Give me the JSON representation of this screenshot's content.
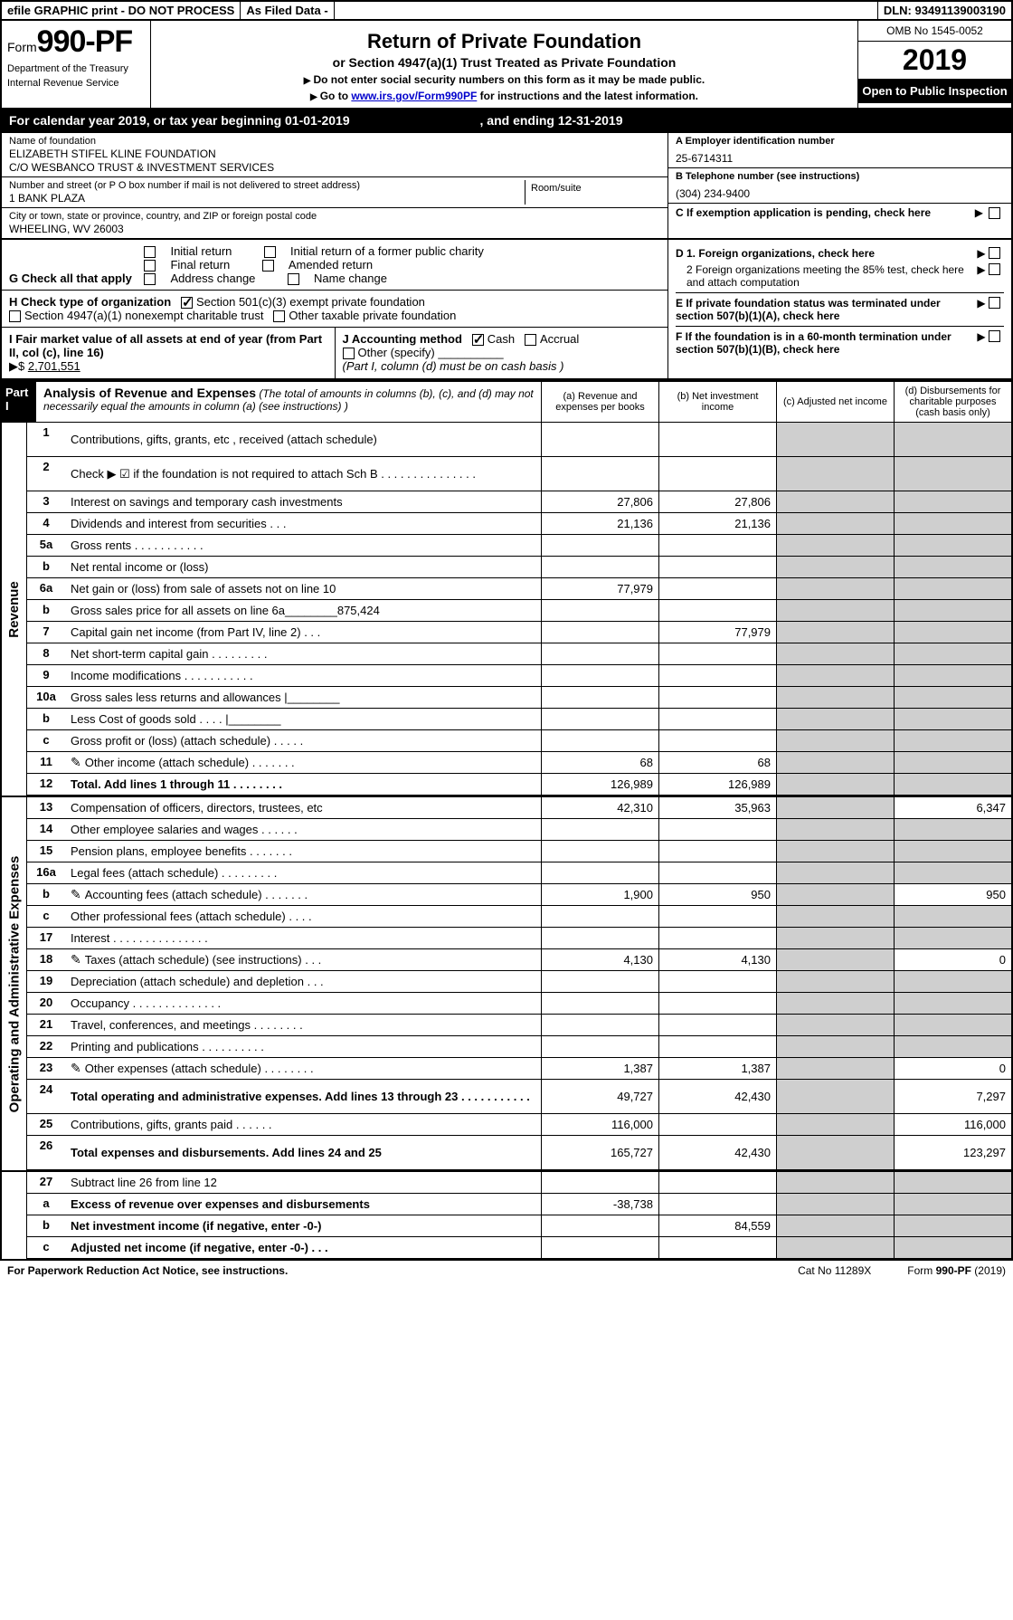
{
  "top": {
    "efile": "efile GRAPHIC print - DO NOT PROCESS",
    "asfiled": "As Filed Data -",
    "dln_label": "DLN:",
    "dln": "93491139003190"
  },
  "hdr": {
    "form_word": "Form",
    "form_no": "990-PF",
    "dept1": "Department of the Treasury",
    "dept2": "Internal Revenue Service",
    "title": "Return of Private Foundation",
    "subtitle": "or Section 4947(a)(1) Trust Treated as Private Foundation",
    "note1": "Do not enter social security numbers on this form as it may be made public.",
    "note2_pre": "Go to ",
    "note2_link": "www.irs.gov/Form990PF",
    "note2_post": " for instructions and the latest information.",
    "omb": "OMB No 1545-0052",
    "year": "2019",
    "open": "Open to Public Inspection"
  },
  "cal": {
    "text_a": "For calendar year 2019, or tax year beginning ",
    "begin": "01-01-2019",
    "text_b": ", and ending ",
    "end": "12-31-2019"
  },
  "entity": {
    "name_lbl": "Name of foundation",
    "name1": "ELIZABETH STIFEL KLINE FOUNDATION",
    "name2": "C/O WESBANCO TRUST & INVESTMENT SERVICES",
    "addr_lbl": "Number and street (or P O  box number if mail is not delivered to street address)",
    "addr": "1 BANK PLAZA",
    "room_lbl": "Room/suite",
    "city_lbl": "City or town, state or province, country, and ZIP or foreign postal code",
    "city": "WHEELING, WV  26003",
    "a_lbl": "A Employer identification number",
    "a_val": "25-6714311",
    "b_lbl": "B Telephone number (see instructions)",
    "b_val": "(304) 234-9400",
    "c_lbl": "C If exemption application is pending, check here"
  },
  "g": {
    "lbl": "G Check all that apply",
    "o1": "Initial return",
    "o2": "Initial return of a former public charity",
    "o3": "Final return",
    "o4": "Amended return",
    "o5": "Address change",
    "o6": "Name change"
  },
  "h": {
    "lbl": "H Check type of organization",
    "o1": "Section 501(c)(3) exempt private foundation",
    "o2": "Section 4947(a)(1) nonexempt charitable trust",
    "o3": "Other taxable private foundation"
  },
  "d": {
    "d1": "D 1. Foreign organizations, check here",
    "d2": "2  Foreign organizations meeting the 85% test, check here and attach computation",
    "e": "E  If private foundation status was terminated under section 507(b)(1)(A), check here",
    "f": "F  If the foundation is in a 60-month termination under section 507(b)(1)(B), check here"
  },
  "i": {
    "lbl": "I Fair market value of all assets at end of year (from Part II, col  (c), line 16) ",
    "amt_lbl": "▶$  ",
    "amt": "2,701,551"
  },
  "j": {
    "lbl": "J Accounting method",
    "o1": "Cash",
    "o2": "Accrual",
    "o3": "Other (specify)",
    "note": "(Part I, column (d) must be on cash basis )"
  },
  "p1": {
    "tag": "Part I",
    "title": "Analysis of Revenue and Expenses",
    "title_note": " (The total of amounts in columns (b), (c), and (d) may not necessarily equal the amounts in column (a) (see instructions) )",
    "col_a": "(a)   Revenue and expenses per books",
    "col_b": "(b)  Net investment income",
    "col_c": "(c)  Adjusted net income",
    "col_d": "(d)  Disbursements for charitable purposes (cash basis only)"
  },
  "vlabels": {
    "rev": "Revenue",
    "exp": "Operating and Administrative Expenses"
  },
  "rows": [
    {
      "n": "1",
      "d": "Contributions, gifts, grants, etc , received (attach schedule)",
      "tall": true
    },
    {
      "n": "2",
      "d": "Check ▶ ☑ if the foundation is not required to attach Sch B       .  .  .  .  .  .  .  .  .  .  .  .  .  .  .",
      "tall": true
    },
    {
      "n": "3",
      "d": "Interest on savings and temporary cash investments",
      "a": "27,806",
      "b": "27,806"
    },
    {
      "n": "4",
      "d": "Dividends and interest from securities      .  .  .",
      "a": "21,136",
      "b": "21,136"
    },
    {
      "n": "5a",
      "d": "Gross rents       .  .  .  .  .  .  .  .  .  .  ."
    },
    {
      "n": "b",
      "d": "Net rental income or (loss)    "
    },
    {
      "n": "6a",
      "d": "Net gain or (loss) from sale of assets not on line 10",
      "a": "77,979"
    },
    {
      "n": "b",
      "d": "Gross sales price for all assets on line 6a________875,424"
    },
    {
      "n": "7",
      "d": "Capital gain net income (from Part IV, line 2)   .  .  .",
      "b": "77,979"
    },
    {
      "n": "8",
      "d": "Net short-term capital gain  .  .  .  .  .  .  .  .  ."
    },
    {
      "n": "9",
      "d": "Income modifications .  .  .  .  .  .  .  .  .  .  ."
    },
    {
      "n": "10a",
      "d": "Gross sales less returns and allowances |________"
    },
    {
      "n": "b",
      "d": "Less  Cost of goods sold     .  .  .  .  |________"
    },
    {
      "n": "c",
      "d": "Gross profit or (loss) (attach schedule)    .  .  .  .  ."
    },
    {
      "n": "11",
      "d": "Other income (attach schedule)    .  .  .  .  .  .  .",
      "icon": true,
      "a": "68",
      "b": "68"
    },
    {
      "n": "12",
      "d": "Total. Add lines 1 through 11   .  .  .  .  .  .  .  .",
      "bold": true,
      "a": "126,989",
      "b": "126,989"
    }
  ],
  "exp_rows": [
    {
      "n": "13",
      "d": "Compensation of officers, directors, trustees, etc",
      "a": "42,310",
      "b": "35,963",
      "dd": "6,347"
    },
    {
      "n": "14",
      "d": "Other employee salaries and wages     .  .  .  .  .  ."
    },
    {
      "n": "15",
      "d": "Pension plans, employee benefits  .  .  .  .  .  .  ."
    },
    {
      "n": "16a",
      "d": "Legal fees (attach schedule) .  .  .  .  .  .  .  .  ."
    },
    {
      "n": "b",
      "d": "Accounting fees (attach schedule) .  .  .  .  .  .  .",
      "icon": true,
      "a": "1,900",
      "b": "950",
      "dd": "950"
    },
    {
      "n": "c",
      "d": "Other professional fees (attach schedule)    .  .  .  ."
    },
    {
      "n": "17",
      "d": "Interest  .  .  .  .  .  .  .  .  .  .  .  .  .  .  ."
    },
    {
      "n": "18",
      "d": "Taxes (attach schedule) (see instructions)      .  .  .",
      "icon": true,
      "a": "4,130",
      "b": "4,130",
      "dd": "0"
    },
    {
      "n": "19",
      "d": "Depreciation (attach schedule) and depletion    .  .  ."
    },
    {
      "n": "20",
      "d": "Occupancy   .  .  .  .  .  .  .  .  .  .  .  .  .  ."
    },
    {
      "n": "21",
      "d": "Travel, conferences, and meetings .  .  .  .  .  .  .  ."
    },
    {
      "n": "22",
      "d": "Printing and publications .  .  .  .  .  .  .  .  .  ."
    },
    {
      "n": "23",
      "d": "Other expenses (attach schedule) .  .  .  .  .  .  .  .",
      "icon": true,
      "a": "1,387",
      "b": "1,387",
      "dd": "0"
    },
    {
      "n": "24",
      "d": "Total operating and administrative expenses. Add lines 13 through 23   .  .  .  .  .  .  .  .  .  .  .",
      "bold": true,
      "tall": true,
      "a": "49,727",
      "b": "42,430",
      "dd": "7,297"
    },
    {
      "n": "25",
      "d": "Contributions, gifts, grants paid      .  .  .  .  .  .",
      "a": "116,000",
      "dd": "116,000"
    },
    {
      "n": "26",
      "d": "Total expenses and disbursements. Add lines 24 and 25",
      "bold": true,
      "tall": true,
      "a": "165,727",
      "b": "42,430",
      "dd": "123,297"
    }
  ],
  "bottom_rows": [
    {
      "n": "27",
      "d": "Subtract line 26 from line 12"
    },
    {
      "n": "a",
      "d": "Excess of revenue over expenses and disbursements",
      "bold": true,
      "a": "-38,738"
    },
    {
      "n": "b",
      "d": "Net investment income (if negative, enter -0-)",
      "bold": true,
      "b": "84,559"
    },
    {
      "n": "c",
      "d": "Adjusted net income (if negative, enter -0-)   .  .  .",
      "bold": true
    }
  ],
  "footer": {
    "left": "For Paperwork Reduction Act Notice, see instructions.",
    "mid": "Cat  No  11289X",
    "right_a": "Form ",
    "right_b": "990-PF",
    "right_c": " (2019)"
  }
}
